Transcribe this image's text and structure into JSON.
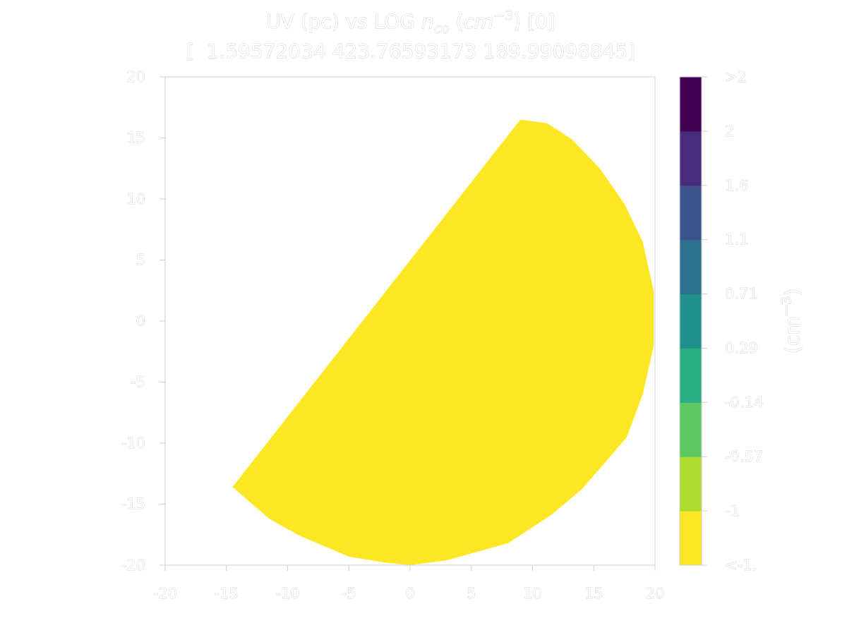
{
  "chart_data": {
    "type": "contour",
    "title_parts": {
      "prefix": "UV (pc) vs LOG ",
      "var_main": "n",
      "var_sub": "co",
      "mid": " (",
      "unit_main": "cm",
      "unit_sup": "−3",
      "suffix": ") [0]"
    },
    "subtitle": "[  1.59572034 423.76593173 189.99098845]",
    "xlim": [
      -20,
      20
    ],
    "ylim": [
      -20,
      20
    ],
    "xticks": [
      -20,
      -15,
      -10,
      -5,
      0,
      5,
      10,
      15,
      20
    ],
    "yticks": [
      -20,
      -15,
      -10,
      -5,
      0,
      5,
      10,
      15,
      20
    ],
    "xtick_labels": [
      "-20",
      "-15",
      "-10",
      "-5",
      "0",
      "5",
      "10",
      "15",
      "20"
    ],
    "ytick_labels": [
      "-20",
      "-15",
      "-10",
      "-5",
      "0",
      "5",
      "10",
      "15",
      "20"
    ],
    "region": {
      "level": "<-1",
      "color": "#fde725",
      "boundary": [
        [
          9.0,
          16.5
        ],
        [
          11.2,
          16.2
        ],
        [
          13.2,
          14.9
        ],
        [
          15.5,
          12.5
        ],
        [
          17.5,
          9.6
        ],
        [
          19.0,
          6.5
        ],
        [
          19.9,
          2.4
        ],
        [
          19.9,
          -2.0
        ],
        [
          19.0,
          -6.0
        ],
        [
          17.7,
          -9.5
        ],
        [
          16.0,
          -11.5
        ],
        [
          14.0,
          -13.8
        ],
        [
          11.5,
          -15.9
        ],
        [
          8.0,
          -18.2
        ],
        [
          3.0,
          -19.6
        ],
        [
          0.0,
          -20.0
        ],
        [
          -2.0,
          -19.8
        ],
        [
          -5.0,
          -19.3
        ],
        [
          -9.0,
          -17.6
        ],
        [
          -11.5,
          -16.2
        ],
        [
          -14.5,
          -13.6
        ]
      ]
    },
    "colorbar": {
      "label_main": "(cm",
      "label_sup": "−3",
      "label_end": ")",
      "levels": [
        {
          "label": "<-1.",
          "color": "#fde725"
        },
        {
          "label": "-1",
          "color": "#addc30"
        },
        {
          "label": "-0.57",
          "color": "#5ec962"
        },
        {
          "label": "-0.14",
          "color": "#28ae80"
        },
        {
          "label": "0.29",
          "color": "#21918c"
        },
        {
          "label": "0.71",
          "color": "#2c728e"
        },
        {
          "label": "1.1",
          "color": "#3b528b"
        },
        {
          "label": "1.6",
          "color": "#472d7b"
        },
        {
          "label": "2",
          "color": "#440154"
        }
      ],
      "top_label": ">2"
    }
  }
}
